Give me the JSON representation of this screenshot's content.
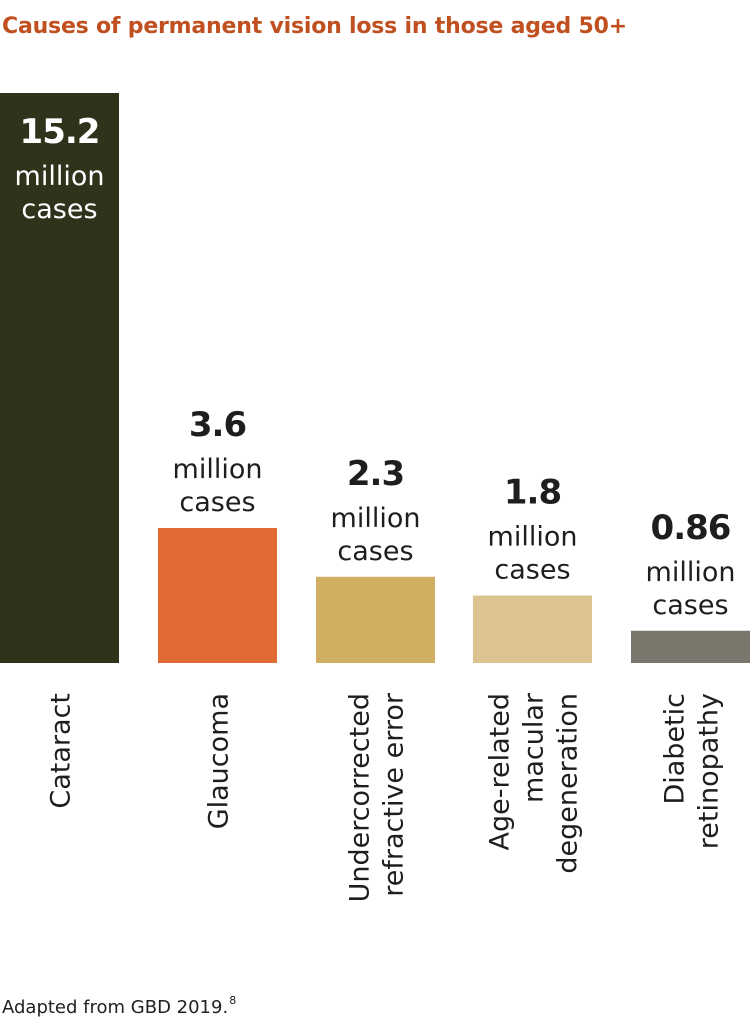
{
  "title": "Causes of permanent vision loss in those aged 50+",
  "colors": {
    "title": "#c0501f",
    "value_text_on_dark": "#ffffff",
    "value_text": "#1e1e1e",
    "category_text": "#1e1e1e"
  },
  "chart_data": {
    "type": "bar",
    "title": "Causes of permanent vision loss in those aged 50+",
    "xlabel": "",
    "ylabel": "",
    "unit": "million cases",
    "grid": false,
    "legend": "none",
    "ylim": [
      0,
      15.2
    ],
    "categories": [
      "Cataract",
      "Glaucoma",
      "Undercorrected refractive error",
      "Age-related macular degeneration",
      "Diabetic retinopathy"
    ],
    "category_label_lines": [
      [
        "Cataract"
      ],
      [
        "Glaucoma"
      ],
      [
        "Undercorrected",
        "refractive error"
      ],
      [
        "Age-related",
        "macular",
        "degeneration"
      ],
      [
        "Diabetic",
        "retinopathy"
      ]
    ],
    "values": [
      15.2,
      3.6,
      2.3,
      1.8,
      0.86
    ],
    "value_labels": [
      "15.2",
      "3.6",
      "2.3",
      "1.8",
      "0.86"
    ],
    "value_label_unit_lines": [
      "million",
      "cases"
    ],
    "colors": [
      "#2e331b",
      "#e26b35",
      "#d0ae62",
      "#dcc490",
      "#7a766c"
    ]
  },
  "footer": {
    "text": "Adapted from GBD 2019.",
    "superscript": "8"
  }
}
